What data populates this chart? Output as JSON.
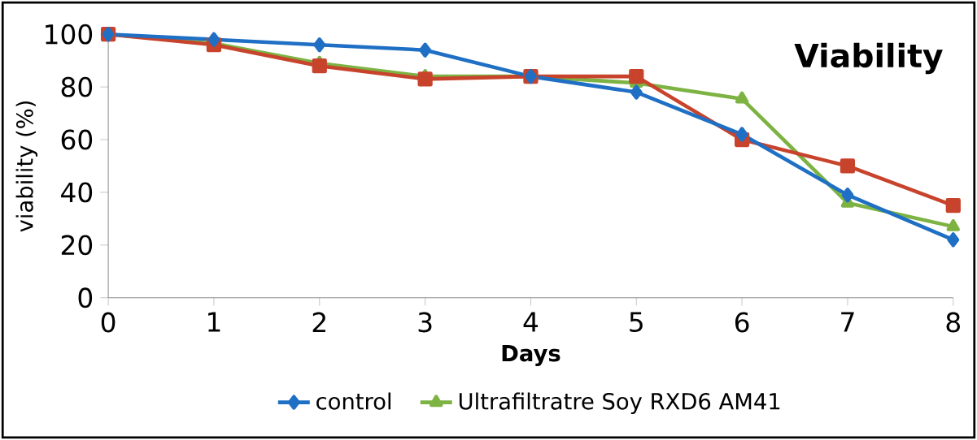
{
  "chart_data": {
    "type": "line",
    "title": "Viability",
    "xlabel": "Days",
    "ylabel": "viability (%)",
    "x": [
      0,
      1,
      2,
      3,
      4,
      5,
      6,
      7,
      8
    ],
    "series": [
      {
        "name": "control",
        "color": "#1f6fc4",
        "marker": "diamond",
        "values": [
          100,
          98,
          96,
          94,
          84,
          78,
          62,
          39,
          22
        ]
      },
      {
        "color": "#c8432c",
        "marker": "square",
        "values": [
          100,
          96,
          88,
          83,
          84,
          84,
          60,
          50,
          35
        ]
      },
      {
        "name": "Ultrafiltratre Soy RXD6 AM41",
        "color": "#7cb342",
        "marker": "triangle",
        "values": [
          100,
          96.5,
          89,
          84,
          84,
          81.5,
          75.5,
          36,
          27
        ]
      }
    ],
    "xlim": [
      0,
      8
    ],
    "xticks": [
      0,
      1,
      2,
      3,
      4,
      5,
      6,
      7,
      8
    ],
    "ylim": [
      0,
      100
    ],
    "yticks": [
      0,
      20,
      40,
      60,
      80,
      100
    ],
    "grid": false,
    "legend": "bottom",
    "line_style": "solid"
  }
}
